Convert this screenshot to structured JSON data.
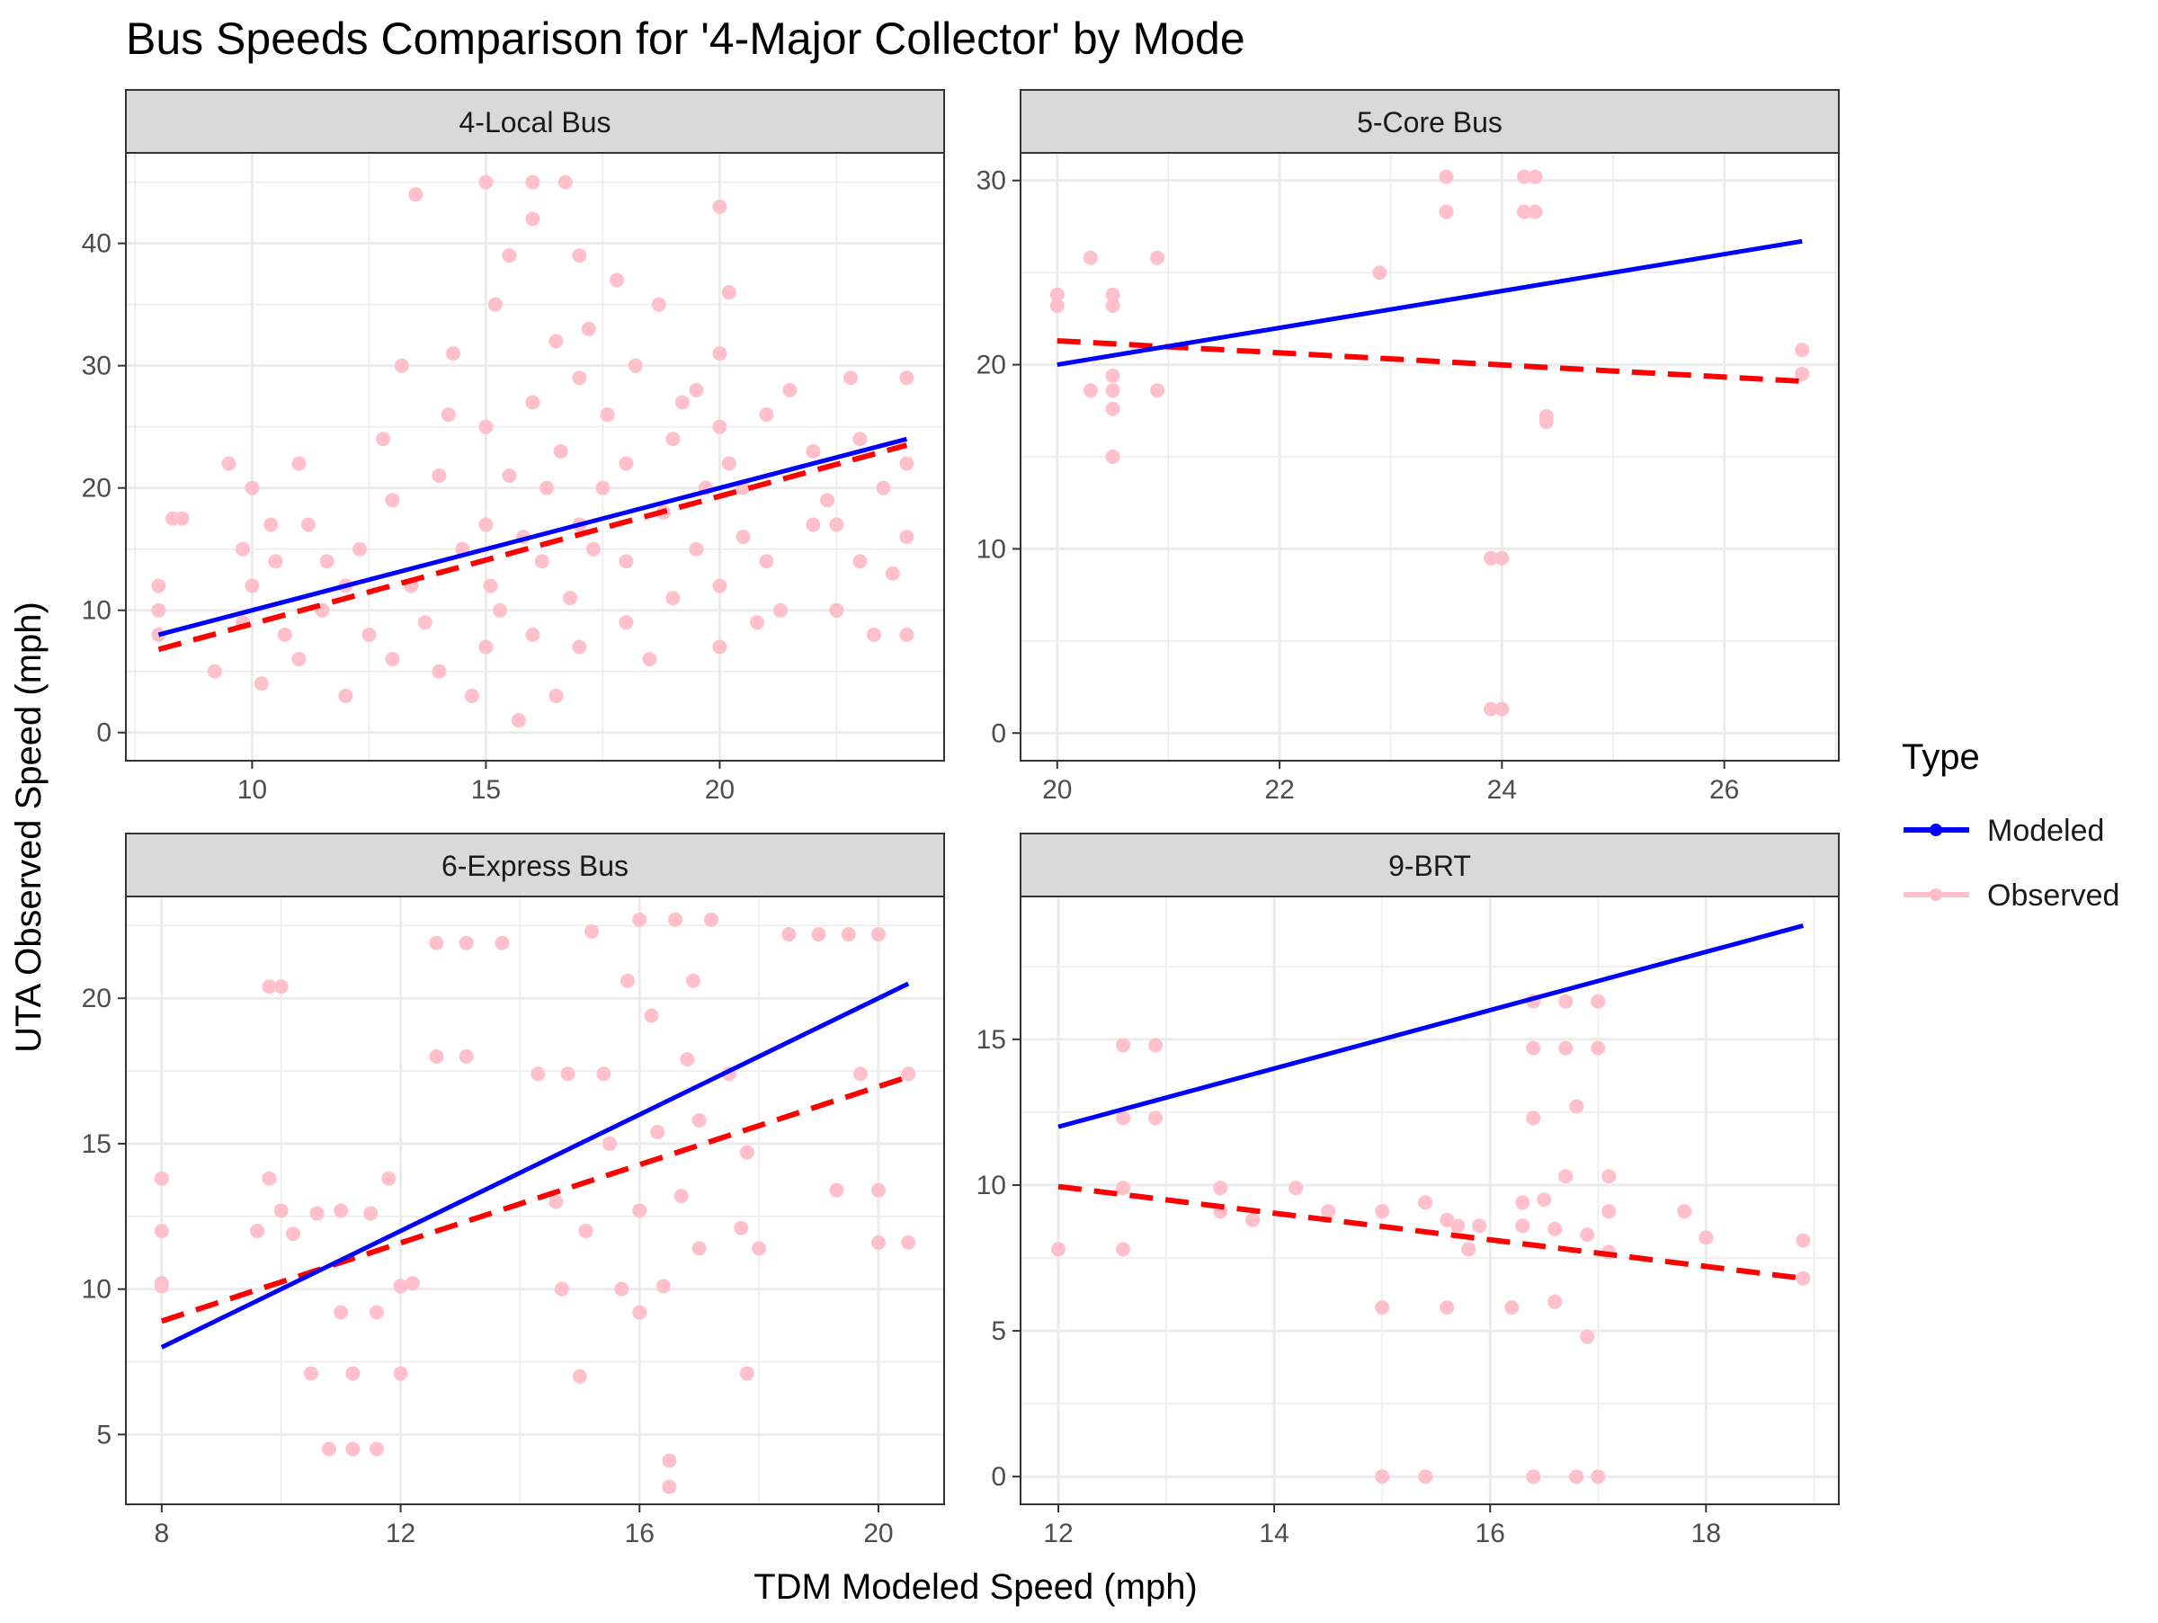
{
  "title": "Bus Speeds Comparison for '4-Major Collector' by Mode",
  "xlabel": "TDM Modeled Speed (mph)",
  "ylabel": "UTA Observed Speed (mph)",
  "legend": {
    "title": "Type",
    "placement": "right",
    "items": [
      {
        "label": "Modeled",
        "color": "#0000FF",
        "style": "solid"
      },
      {
        "label": "Observed",
        "color": "#FFC0CB",
        "style": "point"
      }
    ]
  },
  "colors": {
    "modeled": "#0000FF",
    "observed_points": "#FFC0CB",
    "observed_fit": "#FF0000",
    "strip": "#D9D9D9",
    "grid": "#EBEBEB"
  },
  "chart_data": [
    {
      "type": "scatter",
      "panel": "4-Local Bus",
      "xlim": [
        7.3,
        24.8
      ],
      "ylim": [
        -2.3,
        47.4
      ],
      "x_ticks": [
        10,
        15,
        20
      ],
      "x_tick_labels": [
        "10",
        "15",
        "20"
      ],
      "y_ticks": [
        0,
        10,
        20,
        30,
        40
      ],
      "y_tick_labels": [
        "0",
        "10",
        "20",
        "30",
        "40"
      ],
      "grid": true,
      "modeled_line": {
        "x": [
          8,
          24
        ],
        "y": [
          8,
          24
        ]
      },
      "observed_fit": {
        "x": [
          8,
          24
        ],
        "y": [
          6.8,
          23.5
        ]
      },
      "observed_points": {
        "x": [
          8,
          8,
          8,
          8.3,
          8.5,
          9.2,
          9.5,
          9.8,
          9.8,
          10,
          10,
          10.2,
          10.4,
          10.5,
          10.7,
          11,
          11,
          11.2,
          11.5,
          11.6,
          12,
          12,
          12.3,
          12.5,
          12.8,
          13,
          13,
          13.2,
          13.4,
          13.5,
          13.7,
          14,
          14,
          14.2,
          14.3,
          14.5,
          14.7,
          15,
          15,
          15,
          15,
          15.1,
          15.2,
          15.3,
          15.5,
          15.5,
          15.7,
          15.8,
          16,
          16,
          16,
          16,
          16.2,
          16.3,
          16.5,
          16.5,
          16.6,
          16.7,
          16.8,
          17,
          17,
          17,
          17,
          17.2,
          17.3,
          17.5,
          17.6,
          17.8,
          18,
          18,
          18,
          18.2,
          18.5,
          18.7,
          18.8,
          19,
          19,
          19.2,
          19.5,
          19.5,
          19.7,
          20,
          20,
          20,
          20,
          20,
          20.2,
          20.2,
          20.5,
          20.5,
          20.8,
          21,
          21,
          21.3,
          21.5,
          22,
          22,
          22.3,
          22.5,
          22.8,
          23,
          23,
          23.3,
          23.5,
          24,
          24,
          24,
          24,
          23.7,
          22.5
        ],
        "y": [
          8,
          10,
          12,
          17.5,
          17.5,
          5,
          22,
          9,
          15,
          12,
          20,
          4,
          17,
          14,
          8,
          22,
          6,
          17,
          10,
          14,
          12,
          3,
          15,
          8,
          24,
          6,
          19,
          30,
          12,
          44,
          9,
          21,
          5,
          26,
          31,
          15,
          3,
          17,
          7,
          45,
          25,
          12,
          35,
          10,
          21,
          39,
          1,
          16,
          42,
          27,
          8,
          45,
          14,
          20,
          32,
          3,
          23,
          45,
          11,
          39,
          17,
          29,
          7,
          33,
          15,
          20,
          26,
          37,
          14,
          22,
          9,
          30,
          6,
          35,
          18,
          24,
          11,
          27,
          15,
          28,
          20,
          43,
          31,
          25,
          12,
          7,
          36,
          22,
          20,
          16,
          9,
          14,
          26,
          10,
          28,
          17,
          23,
          19,
          10,
          29,
          14,
          24,
          8,
          20,
          22,
          16,
          29,
          8,
          13,
          17
        ]
      }
    },
    {
      "type": "scatter",
      "panel": "5-Core Bus",
      "xlim": [
        19.67,
        27.03
      ],
      "ylim": [
        -1.5,
        31.5
      ],
      "x_ticks": [
        20,
        22,
        24,
        26
      ],
      "x_tick_labels": [
        "20",
        "22",
        "24",
        "26"
      ],
      "y_ticks": [
        0,
        10,
        20,
        30
      ],
      "y_tick_labels": [
        "0",
        "10",
        "20",
        "30"
      ],
      "grid": true,
      "modeled_line": {
        "x": [
          20,
          26.7
        ],
        "y": [
          20,
          26.7
        ]
      },
      "observed_fit": {
        "x": [
          20,
          26.7
        ],
        "y": [
          21.3,
          19.1
        ]
      },
      "observed_points": {
        "x": [
          20,
          20,
          20.3,
          20.3,
          20.5,
          20.5,
          20.5,
          20.5,
          20.5,
          20.5,
          20.9,
          20.9,
          22.9,
          23.5,
          23.5,
          23.9,
          23.9,
          24,
          24,
          24.2,
          24.2,
          24.3,
          24.3,
          24.4,
          24.4,
          26.7,
          26.7
        ],
        "y": [
          23.8,
          23.2,
          25.8,
          18.6,
          23.8,
          23.2,
          19.4,
          18.6,
          17.6,
          15,
          25.8,
          18.6,
          25,
          30.2,
          28.3,
          9.5,
          1.3,
          9.5,
          1.3,
          30.2,
          28.3,
          30.2,
          28.3,
          17.2,
          16.9,
          20.8,
          19.5
        ]
      }
    },
    {
      "type": "scatter",
      "panel": "6-Express Bus",
      "xlim": [
        7.4,
        21.1
      ],
      "ylim": [
        2.6,
        23.5
      ],
      "x_ticks": [
        8,
        12,
        16,
        20
      ],
      "x_tick_labels": [
        "8",
        "12",
        "16",
        "20"
      ],
      "y_ticks": [
        5,
        10,
        15,
        20
      ],
      "y_tick_labels": [
        "5",
        "10",
        "15",
        "20"
      ],
      "grid": true,
      "modeled_line": {
        "x": [
          8,
          20.5
        ],
        "y": [
          8,
          20.5
        ]
      },
      "observed_fit": {
        "x": [
          8,
          20.5
        ],
        "y": [
          8.9,
          17.3
        ]
      },
      "observed_points": {
        "x": [
          8,
          8,
          8,
          8,
          9.6,
          9.8,
          9.8,
          10,
          10,
          10.2,
          10.5,
          10.6,
          10.8,
          11,
          11,
          11.2,
          11.2,
          11.5,
          11.6,
          11.6,
          11.8,
          12,
          12,
          12.2,
          12.6,
          12.6,
          13.1,
          13.1,
          13.7,
          14.3,
          14.6,
          14.7,
          14.8,
          15,
          15.1,
          15.2,
          15.4,
          15.5,
          15.7,
          15.8,
          16,
          16,
          16,
          16.2,
          16.3,
          16.4,
          16.5,
          16.5,
          16.6,
          16.7,
          16.8,
          16.9,
          17,
          17,
          17.2,
          17.5,
          17.7,
          17.8,
          17.8,
          18,
          18.5,
          19,
          19.3,
          19.5,
          19.7,
          20,
          20,
          20,
          20.5,
          20.5
        ],
        "y": [
          13.8,
          12,
          10.2,
          10.1,
          12,
          13.8,
          20.4,
          12.7,
          20.4,
          11.9,
          7.1,
          12.6,
          4.5,
          9.2,
          12.7,
          4.5,
          7.1,
          12.6,
          4.5,
          9.2,
          13.8,
          7.1,
          10.1,
          10.2,
          21.9,
          18,
          21.9,
          18,
          21.9,
          17.4,
          13,
          10,
          17.4,
          7,
          12,
          22.3,
          17.4,
          15,
          10,
          20.6,
          12.7,
          22.7,
          9.2,
          19.4,
          15.4,
          10.1,
          4.1,
          3.2,
          22.7,
          13.2,
          17.9,
          20.6,
          15.8,
          11.4,
          22.7,
          17.4,
          12.1,
          14.7,
          7.1,
          11.4,
          22.2,
          22.2,
          13.4,
          22.2,
          17.4,
          22.2,
          13.4,
          11.6,
          17.4,
          11.6
        ]
      }
    },
    {
      "type": "scatter",
      "panel": "9-BRT",
      "xlim": [
        11.65,
        19.23
      ],
      "ylim": [
        -0.95,
        19.9
      ],
      "x_ticks": [
        12,
        14,
        16,
        18
      ],
      "x_tick_labels": [
        "12",
        "14",
        "16",
        "18"
      ],
      "y_ticks": [
        0,
        5,
        10,
        15
      ],
      "y_tick_labels": [
        "0",
        "5",
        "10",
        "15"
      ],
      "grid": true,
      "modeled_line": {
        "x": [
          12,
          18.9
        ],
        "y": [
          12,
          18.9
        ]
      },
      "observed_fit": {
        "x": [
          12,
          18.9
        ],
        "y": [
          9.95,
          6.8
        ]
      },
      "observed_points": {
        "x": [
          12,
          12.6,
          12.6,
          12.6,
          12.6,
          12.9,
          12.9,
          13.5,
          13.5,
          13.8,
          14.2,
          14.5,
          15,
          15,
          15,
          15.4,
          15.4,
          15.6,
          15.6,
          15.7,
          15.8,
          15.9,
          16.2,
          16.3,
          16.3,
          16.4,
          16.4,
          16.4,
          16.4,
          16.5,
          16.6,
          16.6,
          16.7,
          16.7,
          16.7,
          16.8,
          16.8,
          16.9,
          16.9,
          17,
          17,
          17,
          17.1,
          17.1,
          17.1,
          17.8,
          18,
          18.9,
          18.9
        ],
        "y": [
          7.8,
          14.8,
          12.3,
          9.9,
          7.8,
          14.8,
          12.3,
          9.9,
          9.1,
          8.8,
          9.9,
          9.1,
          9.1,
          5.8,
          0,
          9.4,
          0,
          5.8,
          8.8,
          8.6,
          7.8,
          8.6,
          5.8,
          9.4,
          8.6,
          16.3,
          14.7,
          12.3,
          0,
          9.5,
          6,
          8.5,
          16.3,
          14.7,
          10.3,
          12.7,
          0,
          8.3,
          4.8,
          16.3,
          14.7,
          0,
          10.3,
          9.1,
          7.7,
          9.1,
          8.2,
          8.1,
          6.8
        ]
      }
    }
  ]
}
